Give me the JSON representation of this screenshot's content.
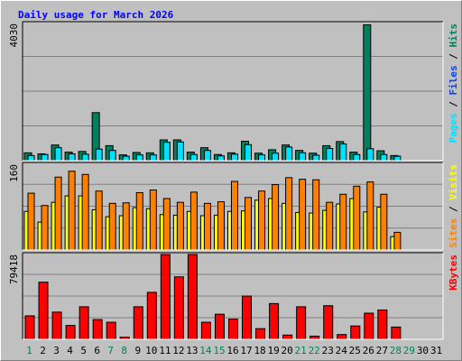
{
  "chart_data": {
    "type": "bar",
    "title": "Daily usage for March 2026",
    "colors": {
      "hits": "#00805C",
      "files": "#0040FF",
      "pages": "#00E0FF",
      "visits": "#FFFF00",
      "sites": "#FF8000",
      "kbytes": "#FF0000",
      "title": "#0000FF",
      "weekday_label": "#000000",
      "weekend_label": "#00805C"
    },
    "categories": [
      "1",
      "2",
      "3",
      "4",
      "5",
      "6",
      "7",
      "8",
      "9",
      "10",
      "11",
      "12",
      "13",
      "14",
      "15",
      "16",
      "17",
      "18",
      "19",
      "20",
      "21",
      "22",
      "23",
      "24",
      "25",
      "26",
      "27",
      "28",
      "29",
      "30",
      "31"
    ],
    "weekend_days": [
      "1",
      "7",
      "8",
      "14",
      "15",
      "21",
      "22",
      "28",
      "29"
    ],
    "panels": [
      {
        "id": "top",
        "axis_max_label": "4030",
        "ylim": [
          0,
          4030
        ],
        "legend": [
          "Pages",
          "Files",
          "Hits"
        ],
        "series": [
          {
            "name": "Hits",
            "values": [
              230,
              200,
              460,
              250,
              270,
              1410,
              440,
              170,
              240,
              230,
              610,
              610,
              250,
              380,
              180,
              230,
              570,
              220,
              320,
              460,
              300,
              220,
              440,
              560,
              250,
              3990,
              290,
              150,
              null,
              null,
              null
            ]
          },
          {
            "name": "Pages",
            "values": [
              150,
              180,
              380,
              200,
              190,
              340,
              300,
              130,
              170,
              170,
              540,
              550,
              180,
              300,
              140,
              190,
              470,
              170,
              220,
              400,
              230,
              160,
              360,
              490,
              180,
              350,
              180,
              130,
              null,
              null,
              null
            ]
          }
        ]
      },
      {
        "id": "middle",
        "axis_max_label": "160",
        "ylim": [
          0,
          160
        ],
        "legend": [
          "Sites",
          "Visits"
        ],
        "series": [
          {
            "name": "Visits",
            "values": [
              72,
              52,
              89,
              101,
              101,
              75,
              62,
              64,
              79,
              77,
              66,
              65,
              72,
              64,
              65,
              72,
              73,
              93,
              96,
              87,
              70,
              69,
              74,
              86,
              96,
              71,
              80,
              25,
              null,
              null,
              null
            ]
          },
          {
            "name": "Sites",
            "values": [
              106,
              83,
              136,
              147,
              141,
              110,
              87,
              88,
              107,
              112,
              96,
              89,
              108,
              87,
              90,
              128,
              98,
              110,
              122,
              135,
              132,
              131,
              89,
              104,
              119,
              127,
              104,
              33,
              null,
              null,
              null
            ]
          }
        ]
      },
      {
        "id": "bottom",
        "axis_max_label": "79418",
        "ylim": [
          0,
          79418
        ],
        "legend": [
          "KBytes"
        ],
        "series": [
          {
            "name": "KBytes",
            "values": [
              22000,
              53500,
              25500,
              13000,
              30500,
              18500,
              16000,
              2000,
              30500,
              44000,
              79418,
              58500,
              79418,
              16000,
              23500,
              19000,
              40500,
              10000,
              33500,
              4000,
              30500,
              3000,
              31500,
              4500,
              12500,
              24500,
              27500,
              11500,
              null,
              null,
              null
            ]
          }
        ]
      }
    ]
  }
}
